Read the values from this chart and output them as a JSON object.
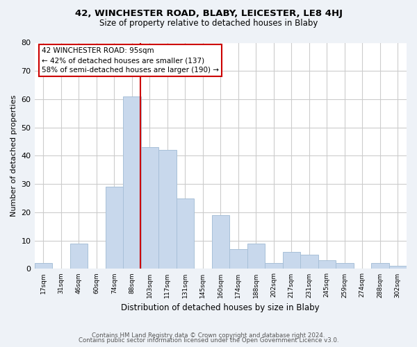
{
  "title": "42, WINCHESTER ROAD, BLABY, LEICESTER, LE8 4HJ",
  "subtitle": "Size of property relative to detached houses in Blaby",
  "xlabel": "Distribution of detached houses by size in Blaby",
  "ylabel": "Number of detached properties",
  "bar_color": "#c8d8ec",
  "bar_edgecolor": "#a8c0d8",
  "vline_x_bin": 5.5,
  "vline_color": "#cc0000",
  "bin_labels": [
    "17sqm",
    "31sqm",
    "46sqm",
    "60sqm",
    "74sqm",
    "88sqm",
    "103sqm",
    "117sqm",
    "131sqm",
    "145sqm",
    "160sqm",
    "174sqm",
    "188sqm",
    "202sqm",
    "217sqm",
    "231sqm",
    "245sqm",
    "259sqm",
    "274sqm",
    "288sqm",
    "302sqm"
  ],
  "counts": [
    2,
    0,
    9,
    0,
    29,
    61,
    43,
    42,
    25,
    0,
    19,
    7,
    9,
    2,
    6,
    5,
    3,
    2,
    0,
    2,
    1
  ],
  "ylim": [
    0,
    80
  ],
  "yticks": [
    0,
    10,
    20,
    30,
    40,
    50,
    60,
    70,
    80
  ],
  "annotation_title": "42 WINCHESTER ROAD: 95sqm",
  "annotation_line1": "← 42% of detached houses are smaller (137)",
  "annotation_line2": "58% of semi-detached houses are larger (190) →",
  "footer1": "Contains HM Land Registry data © Crown copyright and database right 2024.",
  "footer2": "Contains public sector information licensed under the Open Government Licence v3.0.",
  "background_color": "#eef2f7",
  "plot_background": "#ffffff",
  "grid_color": "#cccccc"
}
